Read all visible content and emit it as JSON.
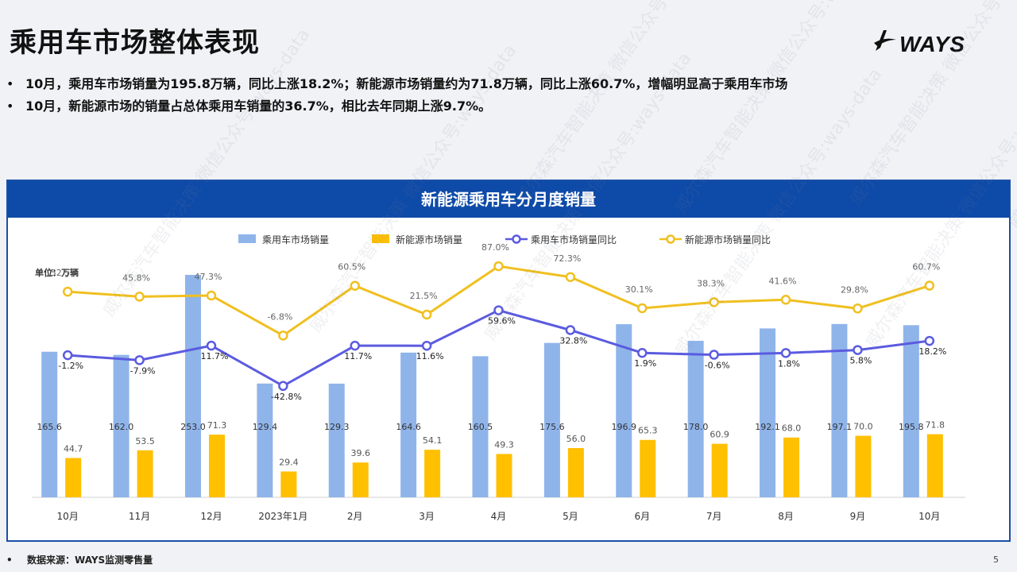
{
  "page": {
    "title": "乘用车市场整体表现",
    "logo_text": "WAYS",
    "page_number": "5",
    "bullets": [
      "10月，乘用车市场销量为195.8万辆，同比上涨18.2%；新能源市场销量约为71.8万辆，同比上涨60.7%，增幅明显高于乘用车市场",
      "10月，新能源市场的销量占总体乘用车销量的36.7%，相比去年同期上涨9.7%。"
    ],
    "bullet_symbol": "•",
    "footer": "数据来源：WAYS监测零售量",
    "watermark_text": "威尔森汽车智能决策 微信公众号:ways-data"
  },
  "chart_data": {
    "type": "bar",
    "title": "新能源乘用车分月度销量",
    "unit_label": "单位：万辆",
    "categories": [
      "10月",
      "11月",
      "12月",
      "2023年1月",
      "2月",
      "3月",
      "4月",
      "5月",
      "6月",
      "7月",
      "8月",
      "9月",
      "10月"
    ],
    "series": [
      {
        "name": "乘用车市场销量",
        "type": "bar",
        "color": "#8fb4ea",
        "values": [
          165.6,
          162.0,
          253.0,
          129.4,
          129.3,
          164.6,
          160.5,
          175.6,
          196.9,
          178.0,
          192.1,
          197.1,
          195.8
        ]
      },
      {
        "name": "新能源市场销量",
        "type": "bar",
        "color": "#ffc000",
        "values": [
          44.7,
          53.5,
          71.3,
          29.4,
          39.6,
          54.1,
          49.3,
          56.0,
          65.3,
          60.9,
          68.0,
          70.0,
          71.8
        ]
      },
      {
        "name": "乘用车市场销量同比",
        "type": "line",
        "color": "#5b5be0",
        "values": [
          -1.2,
          -7.9,
          11.7,
          -42.8,
          11.7,
          11.6,
          59.6,
          32.8,
          1.9,
          -0.6,
          1.8,
          5.8,
          18.2
        ],
        "labels": [
          "-1.2%",
          "-7.9%",
          "11.7%",
          "-42.8%",
          "11.7%",
          "11.6%",
          "59.6%",
          "32.8%",
          "1.9%",
          "-0.6%",
          "1.8%",
          "5.8%",
          "18.2%"
        ]
      },
      {
        "name": "新能源市场销量同比",
        "type": "line",
        "color": "#f0c020",
        "values": [
          52.5,
          45.8,
          47.3,
          -6.8,
          60.5,
          21.5,
          87.0,
          72.3,
          30.1,
          38.3,
          41.6,
          29.8,
          60.7
        ],
        "labels": [
          "52.5%",
          "45.8%",
          "47.3%",
          "-6.8%",
          "60.5%",
          "21.5%",
          "87.0%",
          "72.3%",
          "30.1%",
          "38.3%",
          "41.6%",
          "29.8%",
          "60.7%"
        ]
      }
    ],
    "legend_position": "top",
    "grid": false
  }
}
